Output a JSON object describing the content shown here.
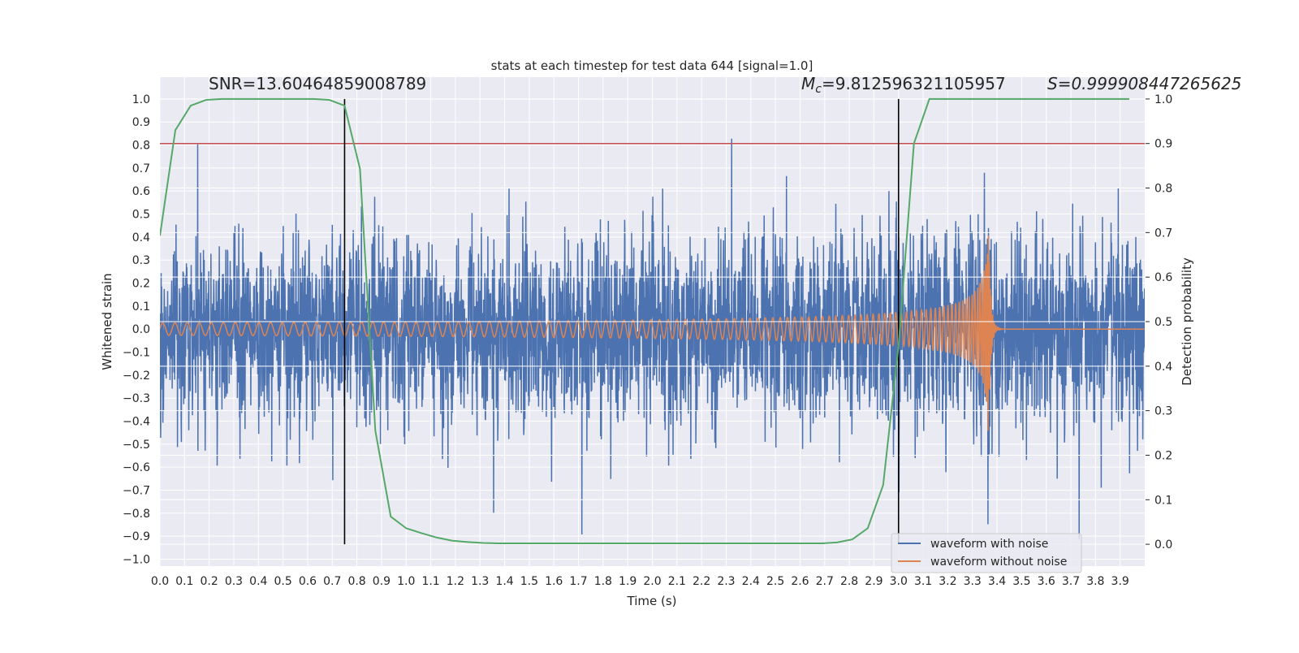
{
  "chart_data": {
    "type": "line",
    "title": "stats at each timestep for test data 644 [signal=1.0]",
    "xlabel": "Time (s)",
    "ylabel": "Whitened strain",
    "ylabel_right": "Detection probability",
    "xlim": [
      0,
      4.0
    ],
    "ylim": [
      -1.03,
      1.095
    ],
    "ylim_right": [
      -0.049,
      1.049
    ],
    "grid": true,
    "legend_position": "lower-right",
    "x_ticks": [
      "0.0",
      "0.1",
      "0.2",
      "0.3",
      "0.4",
      "0.5",
      "0.6",
      "0.7",
      "0.8",
      "0.9",
      "1.0",
      "1.1",
      "1.2",
      "1.3",
      "1.4",
      "1.5",
      "1.6",
      "1.7",
      "1.8",
      "1.9",
      "2.0",
      "2.1",
      "2.2",
      "2.3",
      "2.4",
      "2.5",
      "2.6",
      "2.7",
      "2.8",
      "2.9",
      "3.0",
      "3.1",
      "3.2",
      "3.3",
      "3.4",
      "3.5",
      "3.6",
      "3.7",
      "3.8",
      "3.9"
    ],
    "y_ticks": [
      "1.0",
      "0.9",
      "0.8",
      "0.7",
      "0.6",
      "0.5",
      "0.4",
      "0.3",
      "0.2",
      "0.1",
      "0.0",
      "−0.1",
      "−0.2",
      "−0.3",
      "−0.4",
      "−0.5",
      "−0.6",
      "−0.7",
      "−0.8",
      "−0.9",
      "−1.0"
    ],
    "y_ticks_right": [
      "1.0",
      "0.9",
      "0.8",
      "0.7",
      "0.6",
      "0.5",
      "0.4",
      "0.3",
      "0.2",
      "0.1",
      "0.0"
    ],
    "annotations": {
      "snr": "SNR=13.60464859008789",
      "mc_symbol": "M",
      "mc_sub": "c",
      "mc_value": "=9.812596321105957",
      "s": "S=0.999908447265625"
    },
    "series": [
      {
        "name": "waveform with noise",
        "color": "#4c72b0",
        "axis": "left"
      },
      {
        "name": "waveform without noise",
        "color": "#dd8452",
        "axis": "left"
      }
    ],
    "detection_probability": {
      "color": "#55a868",
      "axis": "right",
      "x_step": 0.0625,
      "values": [
        0.693,
        0.93,
        0.985,
        0.998,
        1.0,
        1.0,
        1.0,
        1.0,
        1.0,
        1.0,
        1.0,
        0.998,
        0.985,
        0.843,
        0.255,
        0.062,
        0.036,
        0.025,
        0.015,
        0.008,
        0.005,
        0.003,
        0.002,
        0.002,
        0.002,
        0.002,
        0.002,
        0.002,
        0.002,
        0.002,
        0.002,
        0.002,
        0.002,
        0.002,
        0.002,
        0.002,
        0.002,
        0.002,
        0.002,
        0.002,
        0.002,
        0.002,
        0.002,
        0.002,
        0.004,
        0.011,
        0.036,
        0.133,
        0.447,
        0.9,
        1.0,
        1.0,
        1.0,
        1.0,
        1.0,
        1.0,
        1.0,
        1.0,
        1.0,
        1.0,
        1.0,
        1.0,
        1.0,
        1.0
      ]
    },
    "threshold": {
      "value": 0.9,
      "axis": "right",
      "color": "#c44e52"
    },
    "vertical_lines": {
      "x": [
        0.75,
        3.0
      ],
      "color": "#000000"
    }
  }
}
